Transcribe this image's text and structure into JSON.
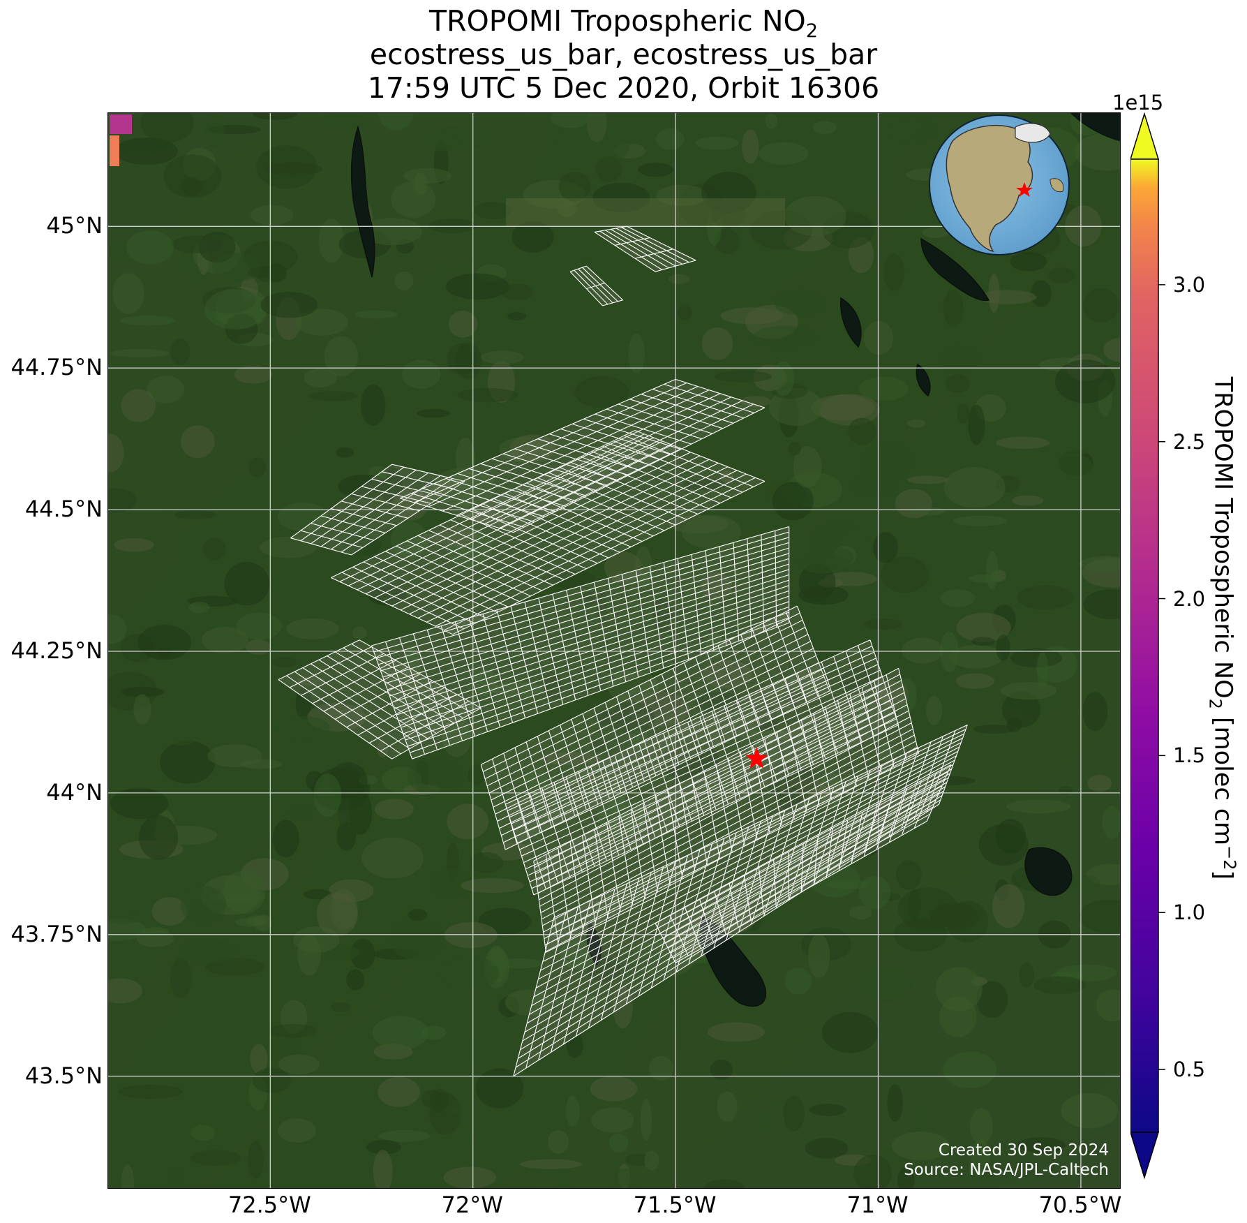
{
  "title": {
    "line1": "TROPOMI Tropospheric NO",
    "line1_sub": "2",
    "line2": "ecostress_us_bar, ecostress_us_bar",
    "line3": "17:59 UTC 5 Dec 2020, Orbit 16306"
  },
  "axes": {
    "lon_ticks": [
      "72.5°W",
      "72°W",
      "71.5°W",
      "71°W",
      "70.5°W"
    ],
    "lat_ticks": [
      "45°N",
      "44.75°N",
      "44.5°N",
      "44.25°N",
      "44°N",
      "43.75°N",
      "43.5°N"
    ],
    "lon_values": [
      -72.5,
      -72.0,
      -71.5,
      -71.0,
      -70.5
    ],
    "lat_values": [
      45.0,
      44.75,
      44.5,
      44.25,
      44.0,
      43.75,
      43.5
    ],
    "lon_range": [
      -72.9,
      -70.4
    ],
    "lat_range": [
      43.3,
      45.2
    ],
    "gridlines": true
  },
  "map": {
    "basemap": "satellite imagery, forested terrain with lakes",
    "target_marker": {
      "lon": -71.3,
      "lat": 44.06,
      "color": "#ff0000",
      "icon": "star-icon"
    },
    "inset_globe": "orthographic globe centered on North America with red star"
  },
  "colorbar": {
    "cmap": "plasma",
    "exponent": "1e15",
    "ticks": [
      "0.5",
      "1.0",
      "1.5",
      "2.0",
      "2.5",
      "3.0"
    ],
    "tick_values": [
      0.5,
      1.0,
      1.5,
      2.0,
      2.5,
      3.0
    ],
    "range": [
      0.3,
      3.4
    ],
    "extend": "both",
    "label_pre": "TROPOMI Tropospheric NO",
    "label_sub": "2",
    "label_mid": " [molec cm",
    "label_sup": "−2",
    "label_post": "]"
  },
  "credit": {
    "line1": "Created 30 Sep 2024",
    "line2": "Source: NASA/JPL-Caltech"
  }
}
